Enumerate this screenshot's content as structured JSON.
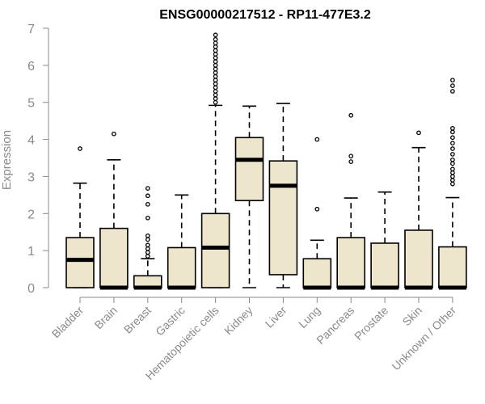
{
  "chart_data": {
    "type": "boxplot",
    "title": "ENSG00000217512 - RP11-477E3.2",
    "xlabel": "",
    "ylabel": "Expression",
    "ylim": [
      0,
      7
    ],
    "yticks": [
      0,
      1,
      2,
      3,
      4,
      5,
      6,
      7
    ],
    "grid": false,
    "colors": {
      "box_fill": "#ede6cd",
      "stroke": "#000000",
      "axis": "#8a8a8a"
    },
    "categories": [
      "Bladder",
      "Brain",
      "Breast",
      "Gastric",
      "Hematopoietic cells",
      "Kidney",
      "Liver",
      "Lung",
      "Pancreas",
      "Prostate",
      "Skin",
      "Unknown / Other"
    ],
    "boxes": [
      {
        "category": "Bladder",
        "lower_whisker": 0,
        "q1": 0,
        "median": 0.75,
        "q3": 1.35,
        "upper_whisker": 2.82,
        "outliers": [
          3.75
        ]
      },
      {
        "category": "Brain",
        "lower_whisker": 0,
        "q1": 0,
        "median": 0,
        "q3": 1.6,
        "upper_whisker": 3.45,
        "outliers": [
          4.15
        ]
      },
      {
        "category": "Breast",
        "lower_whisker": 0,
        "q1": 0,
        "median": 0,
        "q3": 0.32,
        "upper_whisker": 0.78,
        "outliers": [
          0.85,
          0.95,
          1.05,
          1.15,
          1.3,
          1.4,
          1.88,
          2.25,
          2.48,
          2.68
        ]
      },
      {
        "category": "Gastric",
        "lower_whisker": 0,
        "q1": 0,
        "median": 0,
        "q3": 1.08,
        "upper_whisker": 2.5,
        "outliers": []
      },
      {
        "category": "Hematopoietic cells",
        "lower_whisker": 0,
        "q1": 0,
        "median": 1.08,
        "q3": 2.0,
        "upper_whisker": 4.92,
        "outliers": [
          5.0,
          5.1,
          5.2,
          5.3,
          5.4,
          5.5,
          5.6,
          5.7,
          5.8,
          5.9,
          6.0,
          6.1,
          6.2,
          6.3,
          6.4,
          6.5,
          6.6,
          6.7,
          6.82
        ]
      },
      {
        "category": "Kidney",
        "lower_whisker": 0,
        "q1": 2.35,
        "median": 3.45,
        "q3": 4.05,
        "upper_whisker": 4.9,
        "outliers": []
      },
      {
        "category": "Liver",
        "lower_whisker": 0,
        "q1": 0.35,
        "median": 2.75,
        "q3": 3.42,
        "upper_whisker": 4.97,
        "outliers": []
      },
      {
        "category": "Lung",
        "lower_whisker": 0,
        "q1": 0,
        "median": 0,
        "q3": 0.78,
        "upper_whisker": 1.28,
        "outliers": [
          2.12,
          4.0
        ]
      },
      {
        "category": "Pancreas",
        "lower_whisker": 0,
        "q1": 0,
        "median": 0,
        "q3": 1.35,
        "upper_whisker": 2.42,
        "outliers": [
          3.4,
          3.55,
          4.65
        ]
      },
      {
        "category": "Prostate",
        "lower_whisker": 0,
        "q1": 0,
        "median": 0,
        "q3": 1.2,
        "upper_whisker": 2.58,
        "outliers": []
      },
      {
        "category": "Skin",
        "lower_whisker": 0,
        "q1": 0,
        "median": 0,
        "q3": 1.55,
        "upper_whisker": 3.78,
        "outliers": [
          4.18
        ]
      },
      {
        "category": "Unknown / Other",
        "lower_whisker": 0,
        "q1": 0,
        "median": 0,
        "q3": 1.1,
        "upper_whisker": 2.43,
        "outliers": [
          2.8,
          2.9,
          3.0,
          3.1,
          3.2,
          3.35,
          3.45,
          3.6,
          3.75,
          3.9,
          4.05,
          4.2,
          4.3,
          5.3,
          5.45,
          5.6
        ]
      }
    ]
  }
}
